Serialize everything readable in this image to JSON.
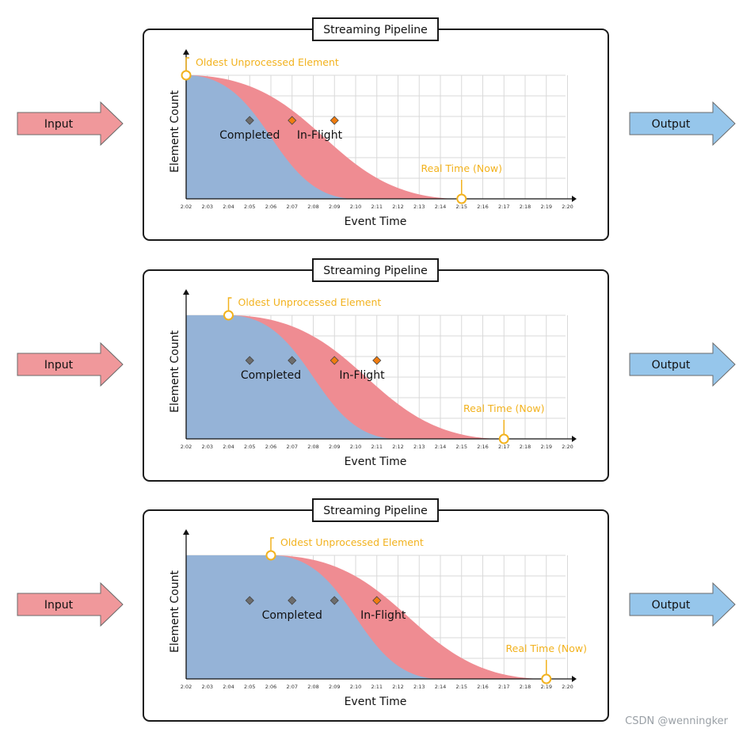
{
  "colors": {
    "input_fill": "#f0989b",
    "output_fill": "#96c6eb",
    "completed_fill": "#95b3d7",
    "inflight_fill": "#ef8c92",
    "marker": "#f2b21e",
    "grid": "#d9d9d9",
    "frame": "#1a1a1a",
    "diamond_done": "#6d6d6d",
    "diamond_flight": "#f07c0f"
  },
  "labels": {
    "frame_title": "Streaming Pipeline",
    "input": "Input",
    "output": "Output",
    "y_axis": "Element Count",
    "x_axis": "Event Time",
    "oldest": "Oldest Unprocessed Element",
    "now": "Real Time (Now)",
    "completed": "Completed",
    "inflight": "In-Flight"
  },
  "tick_labels": [
    "2:02",
    "2:03",
    "2:04",
    "2:05",
    "2:06",
    "2:07",
    "2:08",
    "2:09",
    "2:10",
    "2:11",
    "2:12",
    "2:13",
    "2:14",
    "2:15",
    "2:16",
    "2:17",
    "2:18",
    "2:19",
    "2:20"
  ],
  "panels": [
    {
      "oldest_unprocessed": "2:02",
      "real_time_now": "2:15",
      "completed_markers": [
        "2:05"
      ],
      "inflight_markers": [
        "2:07",
        "2:09"
      ]
    },
    {
      "oldest_unprocessed": "2:04",
      "real_time_now": "2:17",
      "completed_markers": [
        "2:05",
        "2:07"
      ],
      "inflight_markers": [
        "2:09",
        "2:11"
      ]
    },
    {
      "oldest_unprocessed": "2:06",
      "real_time_now": "2:19",
      "completed_markers": [
        "2:05",
        "2:07",
        "2:09"
      ],
      "inflight_markers": [
        "2:11"
      ]
    }
  ],
  "watermark": "CSDN @wenningker"
}
